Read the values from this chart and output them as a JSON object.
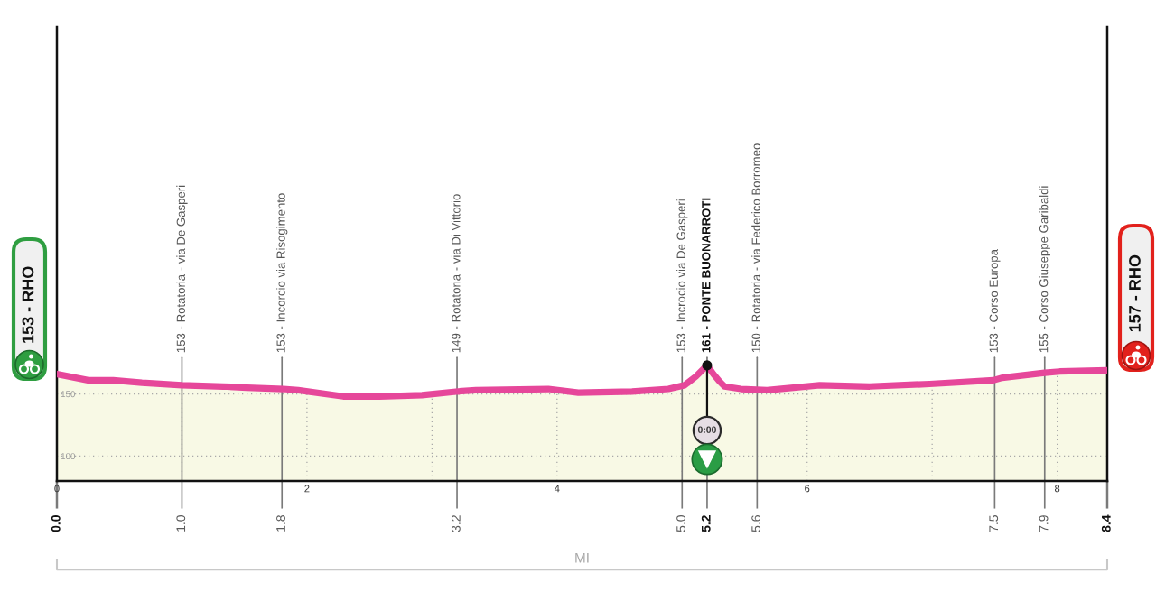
{
  "chart_data": {
    "type": "area",
    "x": [
      0,
      0.25,
      0.45,
      0.68,
      1.0,
      1.33,
      1.52,
      1.81,
      1.93,
      2.29,
      2.58,
      2.92,
      3.21,
      3.35,
      3.93,
      4.17,
      4.6,
      4.89,
      5.02,
      5.11,
      5.2,
      5.25,
      5.3,
      5.34,
      5.47,
      5.68,
      6.1,
      6.5,
      6.98,
      7.49,
      7.56,
      7.9,
      8.02,
      8.4
    ],
    "series": [
      {
        "color": "#e6479a",
        "values": [
          166,
          161,
          161,
          159,
          157,
          156,
          155,
          154,
          153,
          148,
          148,
          149,
          152,
          153,
          154,
          151,
          152,
          154,
          157,
          164,
          173,
          166,
          160,
          156,
          154,
          153,
          157,
          156,
          158,
          161,
          163,
          167,
          168,
          169
        ]
      }
    ],
    "xlim": [
      0,
      8.4
    ],
    "xticks": [
      0,
      {
        "value": 1,
        "label": null
      },
      2,
      {
        "value": 3,
        "label": null
      },
      4,
      {
        "value": 5,
        "label": null
      },
      6,
      {
        "value": 7,
        "label": null
      },
      8
    ],
    "x2lim": [
      0,
      8.4
    ],
    "x2ticks": [
      {
        "value": 0,
        "label": "0.0"
      },
      {
        "value": 1.0,
        "label": "1.0"
      },
      1.8,
      3.2,
      {
        "value": 5.0,
        "label": "5.0"
      },
      5.2,
      5.6,
      7.5,
      7.9,
      8.4
    ],
    "ylim": [
      80,
      445
    ],
    "yticks": [
      100,
      150
    ],
    "xlabel": "MI",
    "grid": true,
    "ref_lines": [
      {
        "axis": "x",
        "value": 1.0,
        "label": "153 - Rotatoria - via De Gasperi"
      },
      {
        "axis": "x",
        "value": 1.8,
        "label": "153 - Incorcio via Risogimento"
      },
      {
        "axis": "x",
        "value": 3.2,
        "label": "149 - Rotatoria - via Di Vittorio"
      },
      {
        "axis": "x",
        "value": 5.0,
        "label": "153 - Incrocio via De Gasperi"
      },
      {
        "axis": "x",
        "value": 5.2,
        "label": "161 - PONTE BUONARROTI"
      },
      {
        "axis": "x",
        "value": 5.6,
        "label": "150 - Rotatoria - via Federico Borromeo"
      },
      {
        "axis": "x",
        "value": 7.5,
        "label": "153 - Corso Europa"
      },
      {
        "axis": "x",
        "value": 7.9,
        "label": "155 - Corso Giuseppe Garibaldi"
      }
    ],
    "annotations": [
      "153 - RHO",
      "157 - RHO",
      {
        "text": "0:00",
        "x": 5.2,
        "y": 173
      }
    ]
  }
}
